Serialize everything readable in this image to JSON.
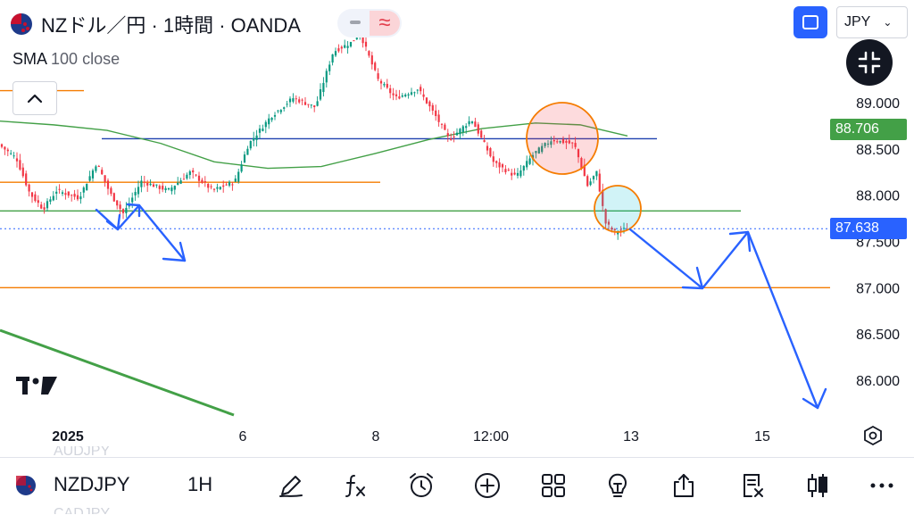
{
  "header": {
    "symbol_title": "NZドル／円 · 1時間 · OANDA",
    "indicator_name": "SMA",
    "indicator_value": "100 close",
    "currency": "JPY"
  },
  "toolbar_icons": {
    "pill_collapse": "minus-icon",
    "pill_wave": "wave-icon",
    "fullscreen": "fullscreen-icon",
    "shrink": "shrink-icon",
    "collapse": "chevron-up-icon",
    "settings": "hexagon-settings-icon",
    "logo": "tradingview-logo-icon"
  },
  "chart_data": {
    "type": "candlestick",
    "price_axis_labels": [
      "89.000",
      "88.500",
      "88.000",
      "87.500",
      "87.000",
      "86.500",
      "86.000"
    ],
    "price_axis_values": [
      89.0,
      88.5,
      88.0,
      87.5,
      87.0,
      86.5,
      86.0
    ],
    "time_axis_labels": [
      "2025",
      "6",
      "8",
      "12:00",
      "13",
      "15"
    ],
    "sma_tag": "88.706",
    "last_price_tag": "87.638",
    "colors": {
      "up": "#089981",
      "down": "#f23645",
      "sma": "#43a047",
      "arrow": "#2962ff",
      "horizontal_orange": "#f57c00",
      "horizontal_blue": "#1e40af",
      "horizontal_green": "#43a047"
    }
  },
  "bottom_bar": {
    "ghost_top": "AUDJPY",
    "symbol": "NZDJPY",
    "interval": "1H",
    "ghost_bottom": "CADJPY",
    "icons": [
      "drawing-pen-icon",
      "fx-indicator-icon",
      "alarm-clock-icon",
      "plus-circle-icon",
      "grid-icon",
      "lightbulb-icon",
      "share-icon",
      "replay-icon",
      "candles-icon",
      "more-icon"
    ]
  }
}
